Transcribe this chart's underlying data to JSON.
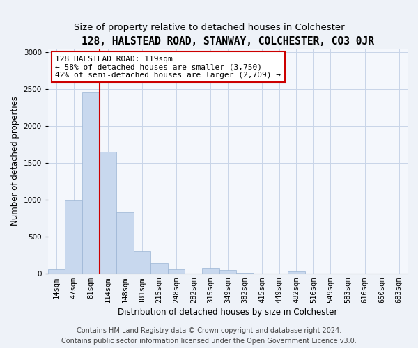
{
  "title": "128, HALSTEAD ROAD, STANWAY, COLCHESTER, CO3 0JR",
  "subtitle": "Size of property relative to detached houses in Colchester",
  "xlabel": "Distribution of detached houses by size in Colchester",
  "ylabel": "Number of detached properties",
  "categories": [
    "14sqm",
    "47sqm",
    "81sqm",
    "114sqm",
    "148sqm",
    "181sqm",
    "215sqm",
    "248sqm",
    "282sqm",
    "315sqm",
    "349sqm",
    "382sqm",
    "415sqm",
    "449sqm",
    "482sqm",
    "516sqm",
    "549sqm",
    "583sqm",
    "616sqm",
    "650sqm",
    "683sqm"
  ],
  "values": [
    55,
    990,
    2460,
    1650,
    830,
    300,
    140,
    55,
    0,
    70,
    45,
    10,
    0,
    0,
    30,
    0,
    0,
    0,
    0,
    0,
    0
  ],
  "bar_color": "#c8d8ee",
  "bar_edgecolor": "#9ab4d4",
  "vline_color": "#cc0000",
  "annotation_text": "128 HALSTEAD ROAD: 119sqm\n← 58% of detached houses are smaller (3,750)\n42% of semi-detached houses are larger (2,709) →",
  "annotation_box_color": "#ffffff",
  "annotation_box_edgecolor": "#cc0000",
  "ylim": [
    0,
    3050
  ],
  "yticks": [
    0,
    500,
    1000,
    1500,
    2000,
    2500,
    3000
  ],
  "footer_line1": "Contains HM Land Registry data © Crown copyright and database right 2024.",
  "footer_line2": "Contains public sector information licensed under the Open Government Licence v3.0.",
  "title_fontsize": 10.5,
  "subtitle_fontsize": 9.5,
  "xlabel_fontsize": 8.5,
  "ylabel_fontsize": 8.5,
  "tick_fontsize": 7.5,
  "annotation_fontsize": 8,
  "footer_fontsize": 7,
  "background_color": "#eef2f8",
  "plot_background_color": "#f4f7fc"
}
